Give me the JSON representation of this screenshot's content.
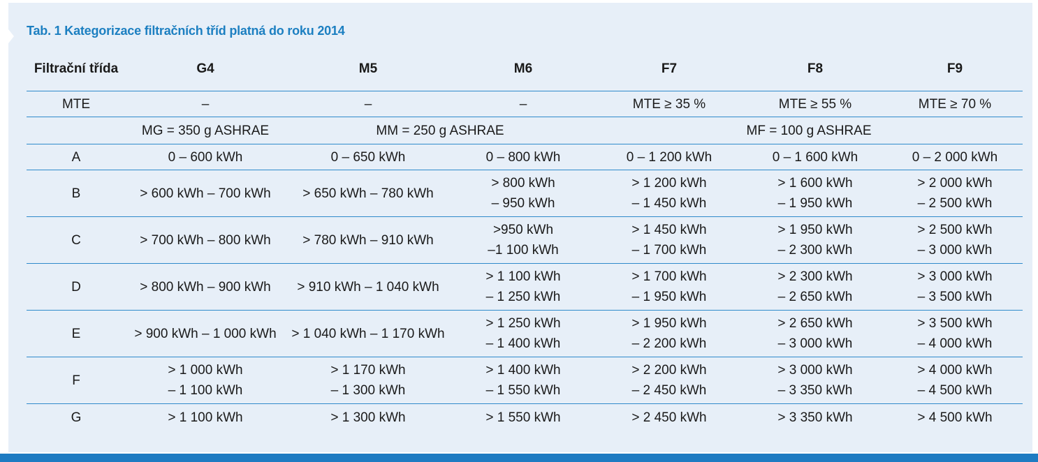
{
  "caption": "Tab. 1 Kategorizace filtračních tříd platná do roku 2014",
  "header": {
    "label_line1": "Filtrační",
    "label_line2": "třída",
    "classes": [
      "G4",
      "M5",
      "M6",
      "F7",
      "F8",
      "F9"
    ]
  },
  "mte_row": {
    "label": "MTE",
    "values": [
      "–",
      "–",
      "–",
      "MTE ≥ 35 %",
      "MTE ≥ 55 %",
      "MTE ≥ 70 %"
    ]
  },
  "ashrae_row": {
    "mg": "MG = 350 g ASHRAE",
    "mm": "MM = 250 g ASHRAE",
    "mf": "MF = 100 g ASHRAE"
  },
  "rows": [
    {
      "label": "A",
      "cells": [
        [
          "0 – 600 kWh"
        ],
        [
          "0 – 650 kWh"
        ],
        [
          "0 – 800 kWh"
        ],
        [
          "0 – 1 200 kWh"
        ],
        [
          "0 – 1 600 kWh"
        ],
        [
          "0 – 2 000 kWh"
        ]
      ]
    },
    {
      "label": "B",
      "cells": [
        [
          "> 600 kWh – 700 kWh"
        ],
        [
          "> 650 kWh – 780 kWh"
        ],
        [
          "> 800 kWh",
          "– 950 kWh"
        ],
        [
          "> 1 200 kWh",
          "– 1 450 kWh"
        ],
        [
          "> 1 600 kWh",
          "– 1 950 kWh"
        ],
        [
          "> 2 000 kWh",
          "– 2 500 kWh"
        ]
      ]
    },
    {
      "label": "C",
      "cells": [
        [
          "> 700 kWh – 800 kWh"
        ],
        [
          "> 780 kWh – 910 kWh"
        ],
        [
          ">950 kWh",
          "–1 100 kWh"
        ],
        [
          "> 1 450 kWh",
          "– 1 700 kWh"
        ],
        [
          "> 1 950 kWh",
          "– 2 300 kWh"
        ],
        [
          "> 2 500 kWh",
          "– 3 000 kWh"
        ]
      ]
    },
    {
      "label": "D",
      "cells": [
        [
          "> 800 kWh – 900 kWh"
        ],
        [
          "> 910 kWh – 1 040 kWh"
        ],
        [
          "> 1 100 kWh",
          "– 1 250 kWh"
        ],
        [
          "> 1 700 kWh",
          "– 1 950 kWh"
        ],
        [
          "> 2 300 kWh",
          "– 2 650 kWh"
        ],
        [
          "> 3 000 kWh",
          "– 3 500 kWh"
        ]
      ]
    },
    {
      "label": "E",
      "cells": [
        [
          "> 900 kWh – 1 000 kWh"
        ],
        [
          "> 1 040 kWh – 1 170 kWh"
        ],
        [
          "> 1 250 kWh",
          "– 1 400 kWh"
        ],
        [
          "> 1 950 kWh",
          "– 2 200 kWh"
        ],
        [
          "> 2 650 kWh",
          "– 3 000 kWh"
        ],
        [
          "> 3 500 kWh",
          "– 4 000 kWh"
        ]
      ]
    },
    {
      "label": "F",
      "cells": [
        [
          "> 1 000 kWh",
          "– 1 100 kWh"
        ],
        [
          "> 1 170 kWh",
          "– 1 300 kWh"
        ],
        [
          "> 1 400 kWh",
          "– 1 550 kWh"
        ],
        [
          "> 2 200 kWh",
          "– 2 450 kWh"
        ],
        [
          "> 3 000 kWh",
          "– 3 350 kWh"
        ],
        [
          "> 4 000 kWh",
          "– 4 500 kWh"
        ]
      ]
    },
    {
      "label": "G",
      "cells": [
        [
          "> 1 100 kWh"
        ],
        [
          "> 1 300 kWh"
        ],
        [
          "> 1 550 kWh"
        ],
        [
          "> 2 450 kWh"
        ],
        [
          "> 3 350 kWh"
        ],
        [
          "> 4 500 kWh"
        ]
      ]
    }
  ],
  "colors": {
    "panel_bg": "#e7eff8",
    "accent_blue": "#1c7fc1",
    "rule_blue": "#2f8acb",
    "bottom_bar": "#1e7bc2"
  }
}
